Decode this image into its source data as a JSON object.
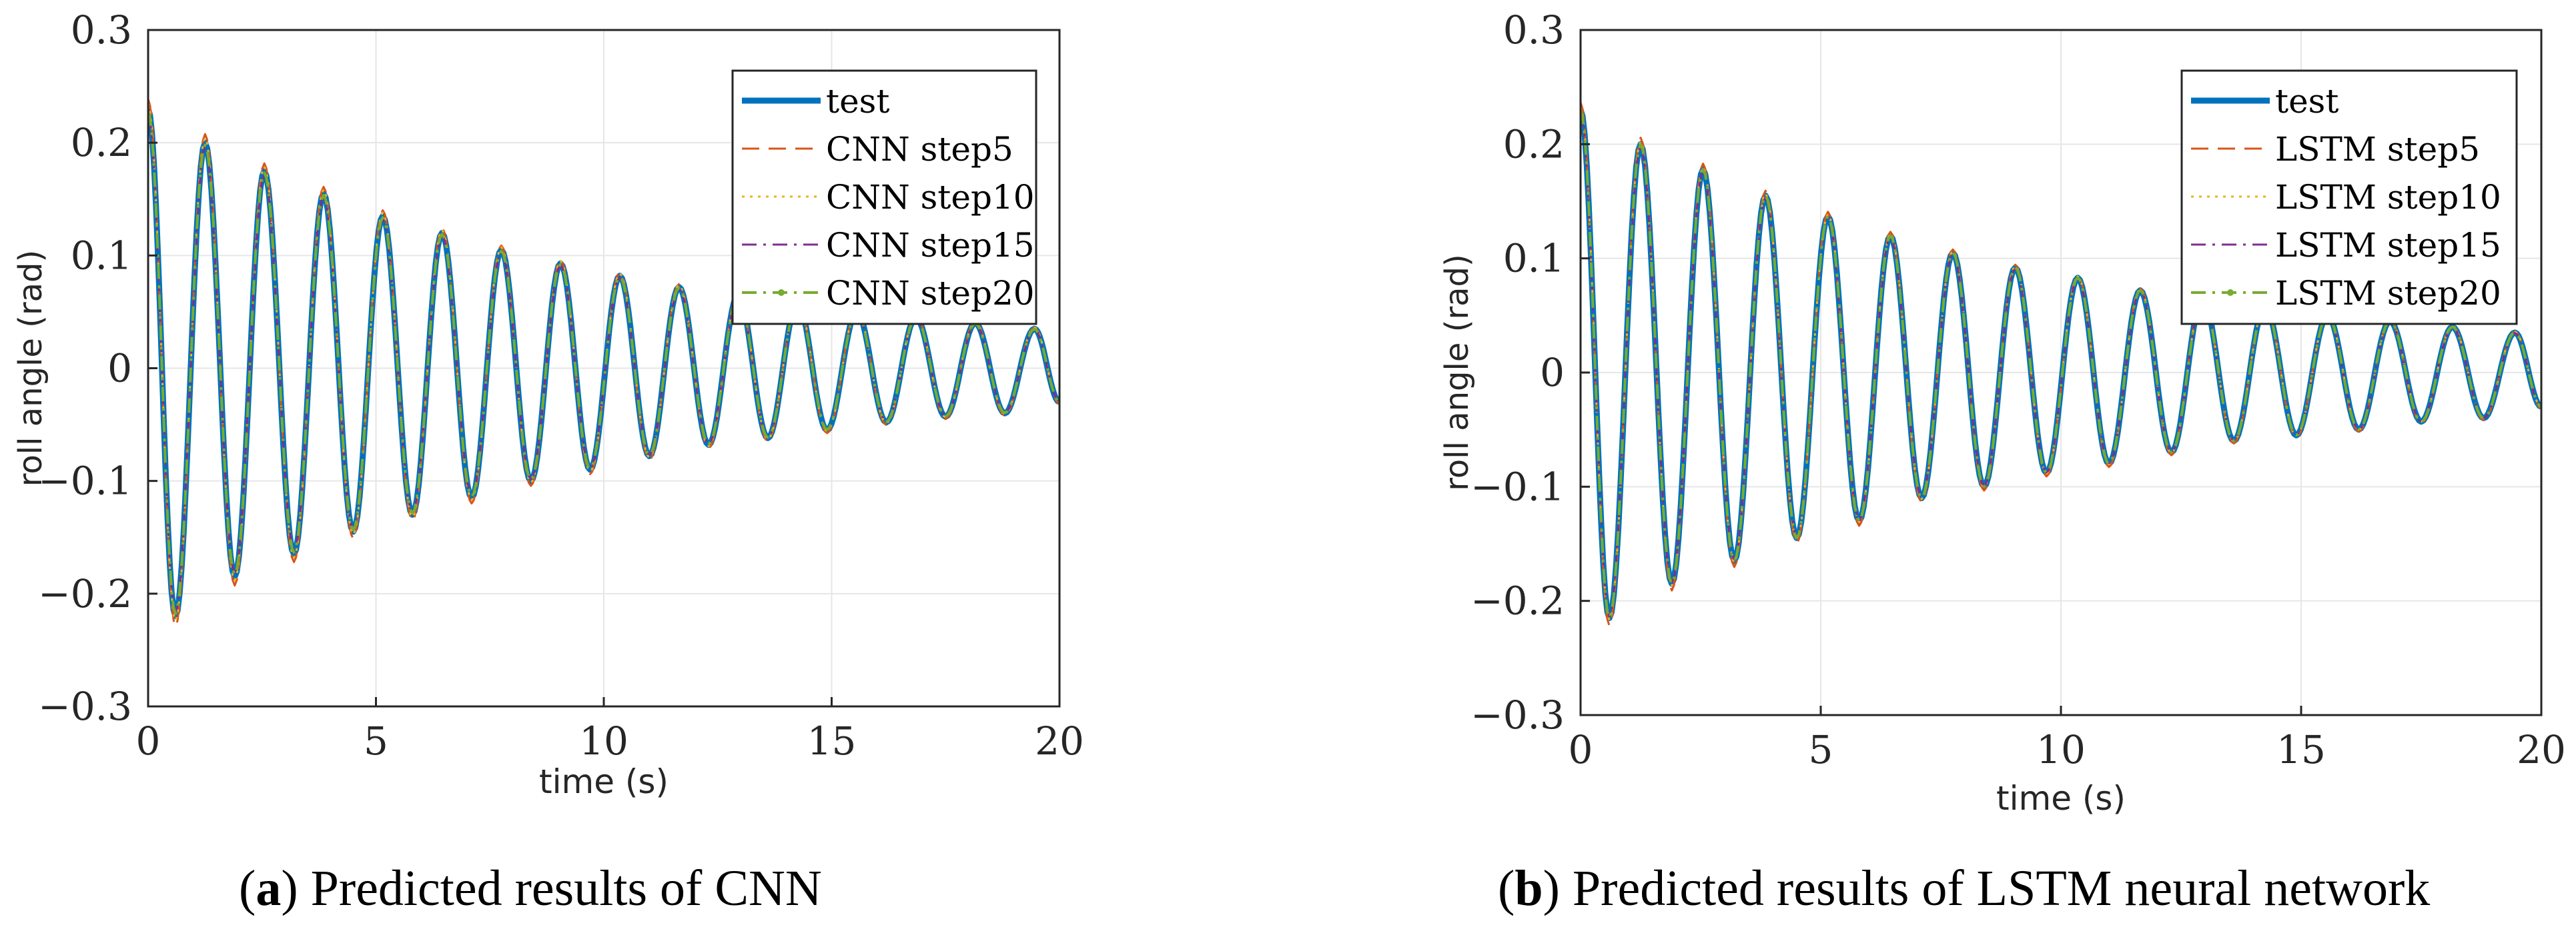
{
  "chart_data": [
    {
      "type": "line",
      "panel": "a",
      "xlabel": "time (s)",
      "ylabel": "roll angle (rad)",
      "xlim": [
        0,
        20
      ],
      "ylim": [
        -0.3,
        0.3
      ],
      "xticks": [
        0,
        5,
        10,
        15,
        20
      ],
      "xtick_labels": [
        "0",
        "5",
        "10",
        "15",
        "20"
      ],
      "yticks": [
        -0.3,
        -0.2,
        -0.1,
        0,
        0.1,
        0.2,
        0.3
      ],
      "ytick_labels": [
        "−0.3",
        "−0.2",
        "−0.1",
        "0",
        "0.1",
        "0.2",
        "0.3"
      ],
      "grid": true,
      "legend_position": "top-right",
      "signal": {
        "t_start": 0,
        "t_end": 20,
        "initial": 0.23,
        "peaks": [
          {
            "t": 0.6,
            "v": -0.22
          },
          {
            "t": 1.25,
            "v": 0.2
          },
          {
            "t": 1.9,
            "v": -0.185
          },
          {
            "t": 2.55,
            "v": 0.175
          },
          {
            "t": 3.2,
            "v": -0.165
          },
          {
            "t": 3.85,
            "v": 0.155
          },
          {
            "t": 4.5,
            "v": -0.145
          },
          {
            "t": 5.15,
            "v": 0.135
          },
          {
            "t": 5.8,
            "v": -0.13
          },
          {
            "t": 6.45,
            "v": 0.12
          },
          {
            "t": 7.1,
            "v": -0.115
          },
          {
            "t": 7.75,
            "v": 0.105
          },
          {
            "t": 8.4,
            "v": -0.1
          },
          {
            "t": 9.05,
            "v": 0.093
          },
          {
            "t": 9.7,
            "v": -0.09
          },
          {
            "t": 10.35,
            "v": 0.082
          },
          {
            "t": 11.0,
            "v": -0.078
          },
          {
            "t": 11.65,
            "v": 0.072
          },
          {
            "t": 12.3,
            "v": -0.068
          },
          {
            "t": 12.95,
            "v": 0.065
          },
          {
            "t": 13.6,
            "v": -0.062
          },
          {
            "t": 14.25,
            "v": 0.058
          },
          {
            "t": 14.9,
            "v": -0.055
          },
          {
            "t": 15.55,
            "v": 0.05
          },
          {
            "t": 16.2,
            "v": -0.048
          },
          {
            "t": 16.85,
            "v": 0.045
          },
          {
            "t": 17.5,
            "v": -0.043
          },
          {
            "t": 18.15,
            "v": 0.04
          },
          {
            "t": 18.8,
            "v": -0.04
          },
          {
            "t": 19.45,
            "v": 0.035
          }
        ],
        "final": -0.03
      },
      "series": [
        {
          "name": "test",
          "color": "#0072BD",
          "style": "solid",
          "width": 9,
          "scale": 1.0,
          "shift": 0
        },
        {
          "name": "CNN step5",
          "color": "#D95319",
          "style": "dashed",
          "width": 3,
          "scale": 1.04,
          "shift": 0.01
        },
        {
          "name": "CNN step10",
          "color": "#EDB120",
          "style": "dotted",
          "width": 3,
          "scale": 1.02,
          "shift": -0.01
        },
        {
          "name": "CNN step15",
          "color": "#7E2F8E",
          "style": "dashdot",
          "width": 3,
          "scale": 0.98,
          "shift": 0.005
        },
        {
          "name": "CNN step20",
          "color": "#77AC30",
          "style": "dashdot-marker",
          "width": 4,
          "scale": 0.99,
          "shift": 0
        }
      ]
    },
    {
      "type": "line",
      "panel": "b",
      "xlabel": "time (s)",
      "ylabel": "roll angle (rad)",
      "xlim": [
        0,
        20
      ],
      "ylim": [
        -0.3,
        0.3
      ],
      "xticks": [
        0,
        5,
        10,
        15,
        20
      ],
      "xtick_labels": [
        "0",
        "5",
        "10",
        "15",
        "20"
      ],
      "yticks": [
        -0.3,
        -0.2,
        -0.1,
        0,
        0.1,
        0.2,
        0.3
      ],
      "ytick_labels": [
        "−0.3",
        "−0.2",
        "−0.1",
        "0",
        "0.1",
        "0.2",
        "0.3"
      ],
      "grid": true,
      "legend_position": "top-right",
      "signal": {
        "t_start": 0,
        "t_end": 20,
        "initial": 0.23,
        "peaks": [
          {
            "t": 0.6,
            "v": -0.215
          },
          {
            "t": 1.25,
            "v": 0.2
          },
          {
            "t": 1.9,
            "v": -0.185
          },
          {
            "t": 2.55,
            "v": 0.178
          },
          {
            "t": 3.2,
            "v": -0.165
          },
          {
            "t": 3.85,
            "v": 0.155
          },
          {
            "t": 4.5,
            "v": -0.145
          },
          {
            "t": 5.15,
            "v": 0.137
          },
          {
            "t": 5.8,
            "v": -0.13
          },
          {
            "t": 6.45,
            "v": 0.12
          },
          {
            "t": 7.1,
            "v": -0.11
          },
          {
            "t": 7.75,
            "v": 0.105
          },
          {
            "t": 8.4,
            "v": -0.1
          },
          {
            "t": 9.05,
            "v": 0.092
          },
          {
            "t": 9.7,
            "v": -0.088
          },
          {
            "t": 10.35,
            "v": 0.083
          },
          {
            "t": 11.0,
            "v": -0.08
          },
          {
            "t": 11.65,
            "v": 0.072
          },
          {
            "t": 12.3,
            "v": -0.07
          },
          {
            "t": 12.95,
            "v": 0.065
          },
          {
            "t": 13.6,
            "v": -0.06
          },
          {
            "t": 14.25,
            "v": 0.058
          },
          {
            "t": 14.9,
            "v": -0.055
          },
          {
            "t": 15.55,
            "v": 0.05
          },
          {
            "t": 16.2,
            "v": -0.05
          },
          {
            "t": 16.85,
            "v": 0.045
          },
          {
            "t": 17.5,
            "v": -0.043
          },
          {
            "t": 18.15,
            "v": 0.04
          },
          {
            "t": 18.8,
            "v": -0.04
          },
          {
            "t": 19.45,
            "v": 0.035
          }
        ],
        "final": -0.03
      },
      "series": [
        {
          "name": "test",
          "color": "#0072BD",
          "style": "solid",
          "width": 9,
          "scale": 1.0,
          "shift": 0
        },
        {
          "name": "LSTM step5",
          "color": "#D95319",
          "style": "dashed",
          "width": 3,
          "scale": 1.03,
          "shift": 0.01
        },
        {
          "name": "LSTM step10",
          "color": "#EDB120",
          "style": "dotted",
          "width": 3,
          "scale": 1.01,
          "shift": -0.01
        },
        {
          "name": "LSTM step15",
          "color": "#7E2F8E",
          "style": "dashdot",
          "width": 3,
          "scale": 0.99,
          "shift": 0.005
        },
        {
          "name": "LSTM step20",
          "color": "#77AC30",
          "style": "dashdot-marker",
          "width": 4,
          "scale": 1.0,
          "shift": 0
        }
      ]
    }
  ],
  "captions": {
    "a": {
      "label": "a",
      "text": ") Predicted results of CNN"
    },
    "b": {
      "label": "b",
      "text": ") Predicted results of LSTM neural network"
    }
  }
}
